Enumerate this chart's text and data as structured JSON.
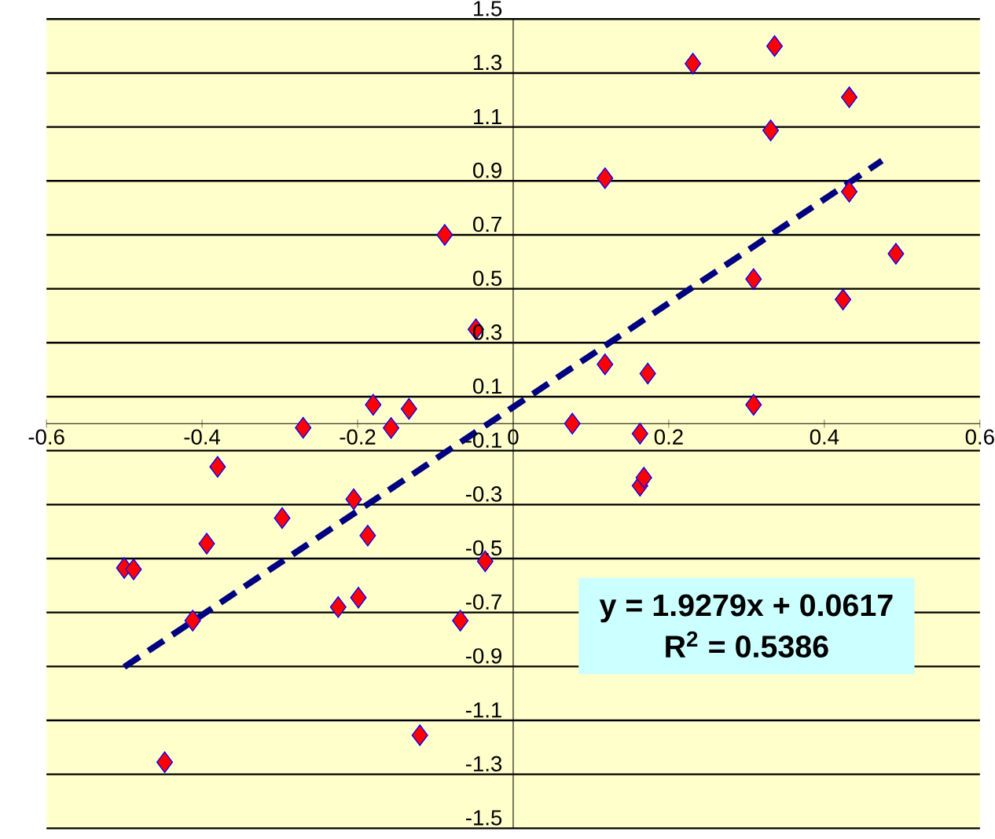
{
  "chart_data": {
    "type": "scatter",
    "series": [
      {
        "type": "scatter",
        "color": "#ff0000",
        "marker": "diamond",
        "x": [
          -0.088,
          -0.048,
          -0.18,
          -0.134,
          -0.27,
          -0.157,
          0.231,
          0.336,
          0.432,
          0.331,
          0.118,
          0.432,
          0.492,
          0.309,
          0.424,
          0.118,
          0.173,
          0.309,
          0.076,
          0.163,
          0.163,
          0.168,
          -0.036,
          -0.38,
          -0.205,
          -0.297,
          -0.187,
          -0.394,
          -0.5,
          -0.488,
          -0.199,
          -0.225,
          -0.412,
          -0.068,
          -0.12,
          -0.448
        ],
        "values": [
          0.7,
          0.35,
          0.07,
          0.055,
          -0.015,
          -0.016,
          1.335,
          1.4,
          1.21,
          1.087,
          0.91,
          0.86,
          0.63,
          0.536,
          0.46,
          0.22,
          0.186,
          0.07,
          0.0,
          -0.037,
          -0.23,
          -0.2,
          -0.51,
          -0.16,
          -0.28,
          -0.35,
          -0.415,
          -0.445,
          -0.535,
          -0.54,
          -0.645,
          -0.68,
          -0.73,
          -0.73,
          -1.155,
          -1.255
        ]
      },
      {
        "type": "line",
        "color": "#000080",
        "line_style": "dashed",
        "marker": "none",
        "x": [
          -0.5,
          0.474
        ],
        "values": [
          -0.902,
          0.975
        ]
      }
    ],
    "xlim": [
      -0.6,
      0.6
    ],
    "ylim": [
      -1.5,
      1.5
    ],
    "xticks": [
      -0.6,
      -0.4,
      -0.2,
      0,
      0.2,
      0.4,
      0.6
    ],
    "yticks": [
      -1.5,
      -1.3,
      -1.1,
      -0.9,
      -0.7,
      -0.5,
      -0.3,
      -0.1,
      0.1,
      0.3,
      0.5,
      0.7,
      0.9,
      1.1,
      1.3,
      1.5
    ],
    "grid": "y",
    "annotations": [
      "y = 1.9279x + 0.0617",
      "R$^{2}$ = 0.5386"
    ]
  }
}
